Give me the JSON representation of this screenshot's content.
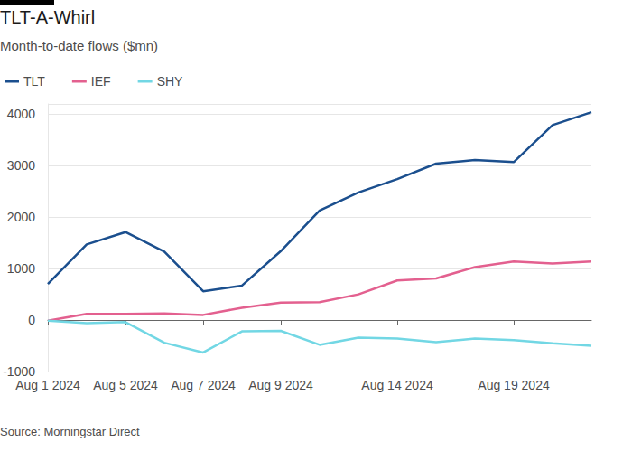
{
  "chart_data": {
    "type": "line",
    "title": "TLT-A-Whirl",
    "subtitle": "Month-to-date flows ($mn)",
    "source": "Source: Morningstar Direct",
    "categories": [
      "Aug 1 2024",
      null,
      "Aug 5 2024",
      null,
      "Aug 7 2024",
      null,
      "Aug 9 2024",
      null,
      null,
      "Aug 14 2024",
      null,
      null,
      "Aug 19 2024",
      null,
      null
    ],
    "series": [
      {
        "name": "TLT",
        "color": "#1b4f8e",
        "values": [
          700,
          1470,
          1710,
          1330,
          560,
          670,
          1340,
          2130,
          2480,
          2740,
          3040,
          3110,
          3070,
          3790,
          4040
        ]
      },
      {
        "name": "IEF",
        "color": "#e3608f",
        "values": [
          -10,
          120,
          120,
          130,
          100,
          240,
          340,
          350,
          500,
          770,
          810,
          1030,
          1140,
          1100,
          1140
        ]
      },
      {
        "name": "SHY",
        "color": "#72d7e4",
        "values": [
          -10,
          -60,
          -40,
          -440,
          -630,
          -220,
          -210,
          -480,
          -340,
          -360,
          -430,
          -360,
          -390,
          -450,
          -500
        ]
      }
    ],
    "ylim": [
      -1000,
      4200
    ],
    "yticks": [
      -1000,
      0,
      1000,
      2000,
      3000,
      4000
    ],
    "grid": true,
    "legend": "top-left"
  }
}
